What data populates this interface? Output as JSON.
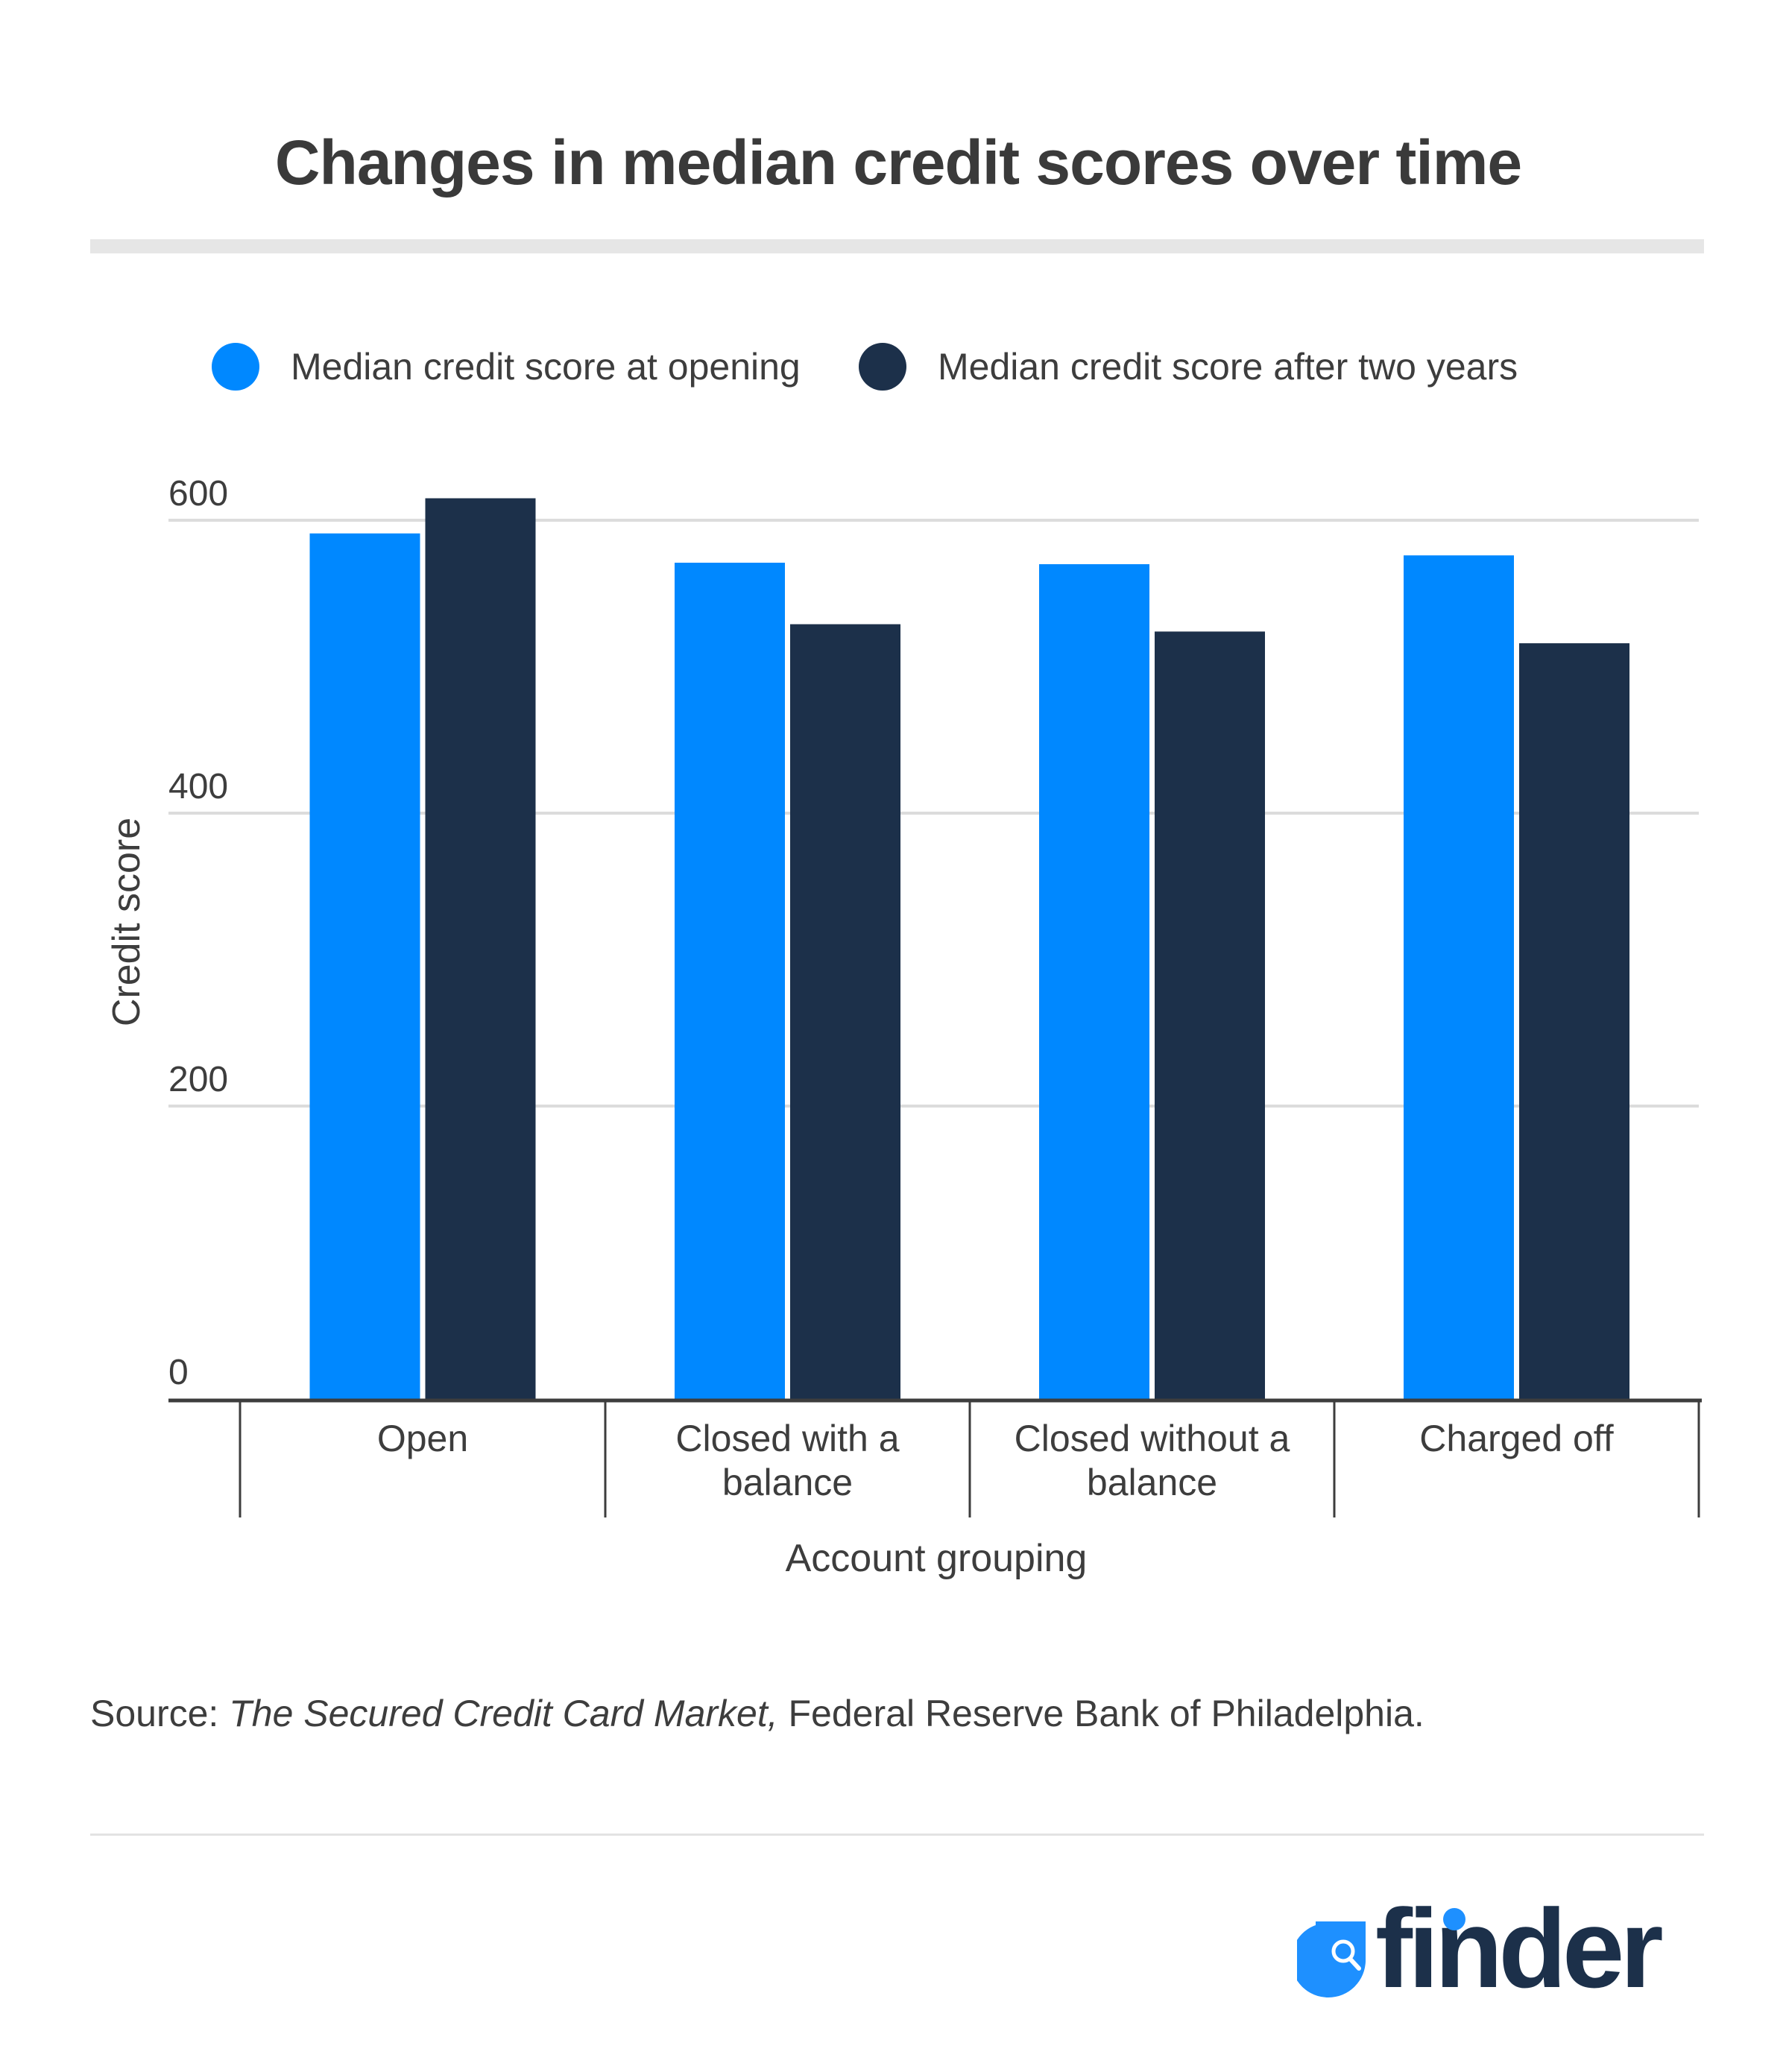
{
  "title": "Changes in median credit scores over time",
  "legend": [
    {
      "label": "Median credit score at opening",
      "color": "#0088ff"
    },
    {
      "label": "Median credit score after two years",
      "color": "#1c304a"
    }
  ],
  "source": {
    "prefix": "Source: ",
    "publication": "The Secured Credit Card Market,",
    "publisher": " Federal Reserve Bank of Philadelphia."
  },
  "logo": {
    "text": "finder",
    "icon": "magnifier-drop-icon"
  },
  "chart_data": {
    "type": "bar",
    "title": "Changes in median credit scores over time",
    "xlabel": "Account grouping",
    "ylabel": "Credit score",
    "ylim": [
      0,
      600
    ],
    "yticks": [
      0,
      200,
      400,
      600
    ],
    "grid": true,
    "legend_position": "top",
    "categories": [
      [
        "Open"
      ],
      [
        "Closed with a",
        "balance"
      ],
      [
        "Closed without a",
        "balance"
      ],
      [
        "Charged off"
      ]
    ],
    "series": [
      {
        "name": "Median credit score at opening",
        "color": "#0088ff",
        "values": [
          591,
          571,
          570,
          576
        ]
      },
      {
        "name": "Median credit score after two years",
        "color": "#1c304a",
        "values": [
          615,
          529,
          524,
          516
        ]
      }
    ]
  }
}
